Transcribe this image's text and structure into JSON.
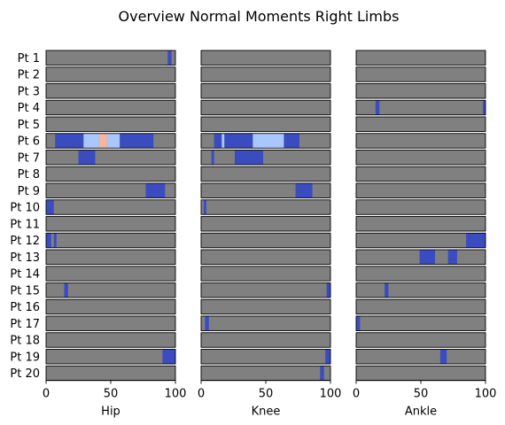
{
  "chart_data": {
    "type": "heatmap",
    "title": "Overview Normal Moments Right Limbs",
    "rows": [
      "Pt 1",
      "Pt 2",
      "Pt 3",
      "Pt 4",
      "Pt 5",
      "Pt 6",
      "Pt 7",
      "Pt 8",
      "Pt 9",
      "Pt 10",
      "Pt 11",
      "Pt 12",
      "Pt 13",
      "Pt 14",
      "Pt 15",
      "Pt 16",
      "Pt 17",
      "Pt 18",
      "Pt 19",
      "Pt 20"
    ],
    "xlim": [
      0,
      100
    ],
    "xticks": [
      0,
      50,
      100
    ],
    "colors": {
      "background": "#808080",
      "dark_blue": "#3b4cc0",
      "light_blue": "#aac7fd",
      "salmon": "#f7b599",
      "border": "#000000"
    },
    "panels": [
      {
        "xlabel": "Hip",
        "segments": [
          {
            "row": 0,
            "start": 94,
            "end": 97,
            "color": "dark_blue"
          },
          {
            "row": 5,
            "start": 7,
            "end": 29,
            "color": "dark_blue"
          },
          {
            "row": 5,
            "start": 29,
            "end": 41,
            "color": "light_blue"
          },
          {
            "row": 5,
            "start": 41,
            "end": 47,
            "color": "salmon"
          },
          {
            "row": 5,
            "start": 47,
            "end": 57,
            "color": "light_blue"
          },
          {
            "row": 5,
            "start": 57,
            "end": 83,
            "color": "dark_blue"
          },
          {
            "row": 6,
            "start": 25,
            "end": 38,
            "color": "dark_blue"
          },
          {
            "row": 8,
            "start": 77,
            "end": 92,
            "color": "dark_blue"
          },
          {
            "row": 9,
            "start": 0,
            "end": 6,
            "color": "dark_blue"
          },
          {
            "row": 11,
            "start": 0,
            "end": 4,
            "color": "dark_blue"
          },
          {
            "row": 11,
            "start": 6,
            "end": 8,
            "color": "dark_blue"
          },
          {
            "row": 14,
            "start": 14,
            "end": 17,
            "color": "dark_blue"
          },
          {
            "row": 18,
            "start": 90,
            "end": 100,
            "color": "dark_blue"
          }
        ]
      },
      {
        "xlabel": "Knee",
        "segments": [
          {
            "row": 5,
            "start": 10,
            "end": 16,
            "color": "dark_blue"
          },
          {
            "row": 5,
            "start": 16,
            "end": 18,
            "color": "light_blue"
          },
          {
            "row": 5,
            "start": 18,
            "end": 40,
            "color": "dark_blue"
          },
          {
            "row": 5,
            "start": 40,
            "end": 64,
            "color": "light_blue"
          },
          {
            "row": 5,
            "start": 64,
            "end": 76,
            "color": "dark_blue"
          },
          {
            "row": 6,
            "start": 8,
            "end": 10,
            "color": "dark_blue"
          },
          {
            "row": 6,
            "start": 26,
            "end": 48,
            "color": "dark_blue"
          },
          {
            "row": 8,
            "start": 73,
            "end": 86,
            "color": "dark_blue"
          },
          {
            "row": 9,
            "start": 2,
            "end": 4,
            "color": "dark_blue"
          },
          {
            "row": 14,
            "start": 97,
            "end": 100,
            "color": "dark_blue"
          },
          {
            "row": 16,
            "start": 3,
            "end": 6,
            "color": "dark_blue"
          },
          {
            "row": 18,
            "start": 96,
            "end": 100,
            "color": "dark_blue"
          },
          {
            "row": 19,
            "start": 92,
            "end": 95,
            "color": "dark_blue"
          }
        ]
      },
      {
        "xlabel": "Ankle",
        "segments": [
          {
            "row": 3,
            "start": 15,
            "end": 18,
            "color": "dark_blue"
          },
          {
            "row": 3,
            "start": 98,
            "end": 100,
            "color": "dark_blue"
          },
          {
            "row": 11,
            "start": 85,
            "end": 100,
            "color": "dark_blue"
          },
          {
            "row": 12,
            "start": 49,
            "end": 61,
            "color": "dark_blue"
          },
          {
            "row": 12,
            "start": 71,
            "end": 78,
            "color": "dark_blue"
          },
          {
            "row": 14,
            "start": 22,
            "end": 25,
            "color": "dark_blue"
          },
          {
            "row": 16,
            "start": 0,
            "end": 3,
            "color": "dark_blue"
          },
          {
            "row": 18,
            "start": 65,
            "end": 70,
            "color": "dark_blue"
          }
        ]
      }
    ]
  }
}
